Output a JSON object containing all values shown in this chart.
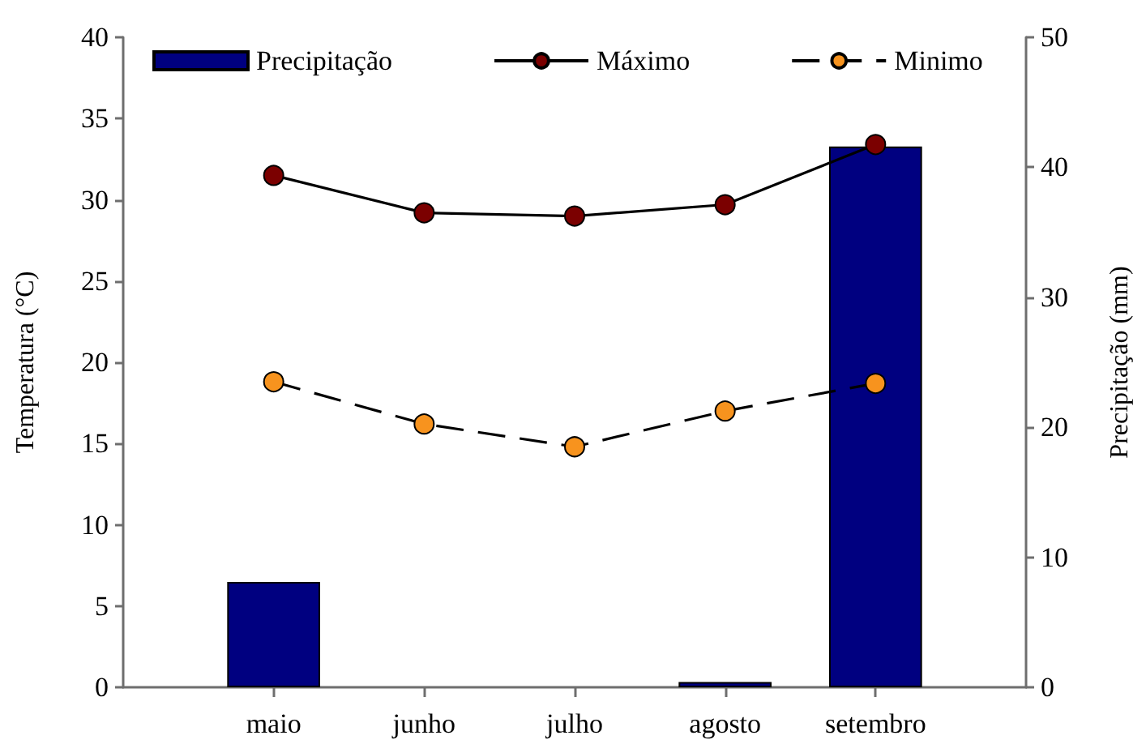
{
  "chart_data": {
    "type": "bar",
    "categories": [
      "maio",
      "junho",
      "julho",
      "agosto",
      "setembro"
    ],
    "ylabel": "Temperatura (°C)",
    "y2label": "Precipitação (mm)",
    "ylim": [
      0,
      40
    ],
    "yticks": [
      0,
      5,
      10,
      15,
      20,
      25,
      30,
      35,
      40
    ],
    "y2lim": [
      0,
      50
    ],
    "y2ticks": [
      0,
      10,
      20,
      30,
      40,
      50
    ],
    "series": [
      {
        "name": "Precipitação",
        "axis": "y2",
        "color": "#000080",
        "values": [
          8.1,
          0,
          0,
          0.4,
          41.6
        ]
      },
      {
        "name": "Máximo",
        "type": "line",
        "color": "#7b0000",
        "line_style": "solid",
        "values": [
          31.5,
          29.2,
          29.0,
          29.7,
          33.4
        ]
      },
      {
        "name": "Minimo",
        "type": "line",
        "color": "#f7931e",
        "line_style": "dashed",
        "values": [
          18.8,
          16.2,
          14.8,
          17.0,
          18.7
        ]
      }
    ],
    "marker": "circle",
    "legend": "top",
    "grid": false
  }
}
